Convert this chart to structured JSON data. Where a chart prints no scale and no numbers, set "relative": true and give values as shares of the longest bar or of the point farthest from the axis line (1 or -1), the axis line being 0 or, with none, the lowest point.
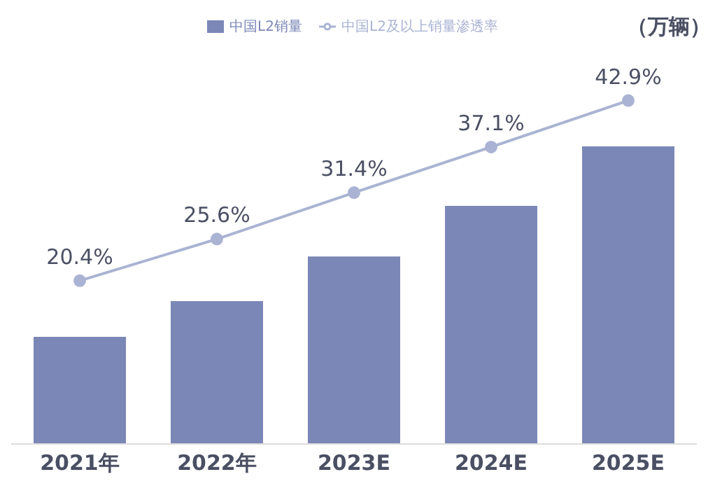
{
  "chart_data": [
    {
      "type": "bar",
      "relative": true,
      "categories": [
        "2021年",
        "2022年",
        "2023E",
        "2024E",
        "2025E"
      ],
      "legend": "top",
      "series": [
        {
          "name": "中国L2销量",
          "color": "#7b87b7",
          "values": [
            0.36,
            0.48,
            0.63,
            0.8,
            1
          ]
        }
      ]
    },
    {
      "type": "line",
      "annotations": [
        "（万辆）"
      ],
      "categories": [
        null,
        null,
        null,
        null,
        null
      ],
      "tick_labels": false,
      "legend": "top",
      "marker": "circle",
      "series": [
        {
          "name": "中国L2及以上销量渗透率",
          "color": "#aab3d3",
          "values": [
            20.4,
            25.6,
            31.4,
            37.1,
            42.9
          ],
          "value_labels": [
            "20.4%",
            "25.6%",
            "31.4%",
            "37.1%",
            "42.9%"
          ]
        }
      ]
    }
  ]
}
